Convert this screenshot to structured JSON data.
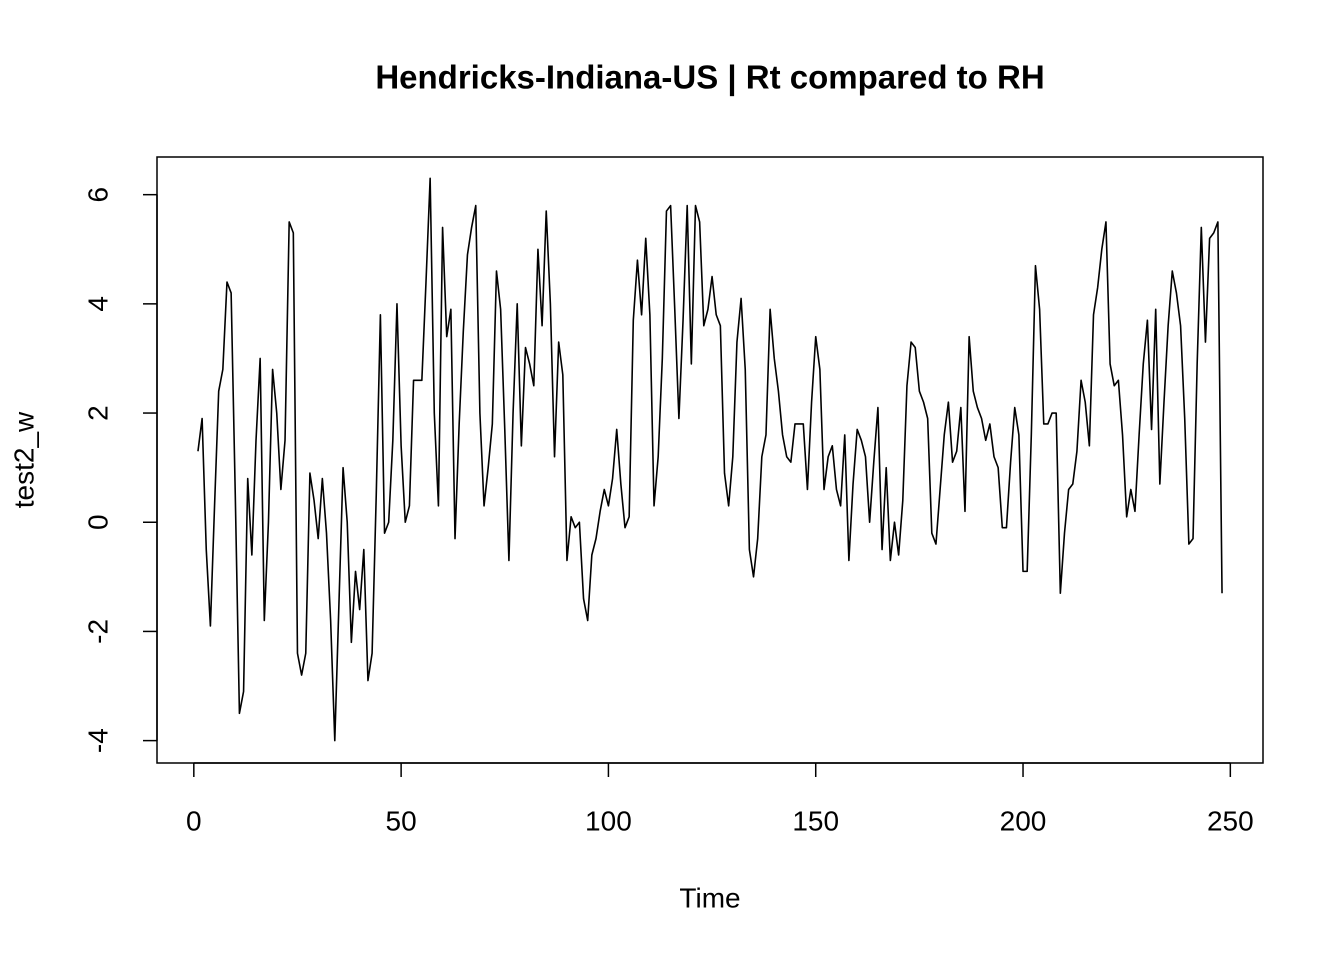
{
  "chart_data": {
    "type": "line",
    "title": "Hendricks-Indiana-US | Rt compared to RH",
    "x_label": "Time",
    "y_label": "test2_w",
    "x": [
      1,
      2,
      3,
      4,
      5,
      6,
      7,
      8,
      9,
      10,
      11,
      12,
      13,
      14,
      15,
      16,
      17,
      18,
      19,
      20,
      21,
      22,
      23,
      24,
      25,
      26,
      27,
      28,
      29,
      30,
      31,
      32,
      33,
      34,
      35,
      36,
      37,
      38,
      39,
      40,
      41,
      42,
      43,
      44,
      45,
      46,
      47,
      48,
      49,
      50,
      51,
      52,
      53,
      54,
      55,
      56,
      57,
      58,
      59,
      60,
      61,
      62,
      63,
      64,
      65,
      66,
      67,
      68,
      69,
      70,
      71,
      72,
      73,
      74,
      75,
      76,
      77,
      78,
      79,
      80,
      81,
      82,
      83,
      84,
      85,
      86,
      87,
      88,
      89,
      90,
      91,
      92,
      93,
      94,
      95,
      96,
      97,
      98,
      99,
      100,
      101,
      102,
      103,
      104,
      105,
      106,
      107,
      108,
      109,
      110,
      111,
      112,
      113,
      114,
      115,
      116,
      117,
      118,
      119,
      120,
      121,
      122,
      123,
      124,
      125,
      126,
      127,
      128,
      129,
      130,
      131,
      132,
      133,
      134,
      135,
      136,
      137,
      138,
      139,
      140,
      141,
      142,
      143,
      144,
      145,
      146,
      147,
      148,
      149,
      150,
      151,
      152,
      153,
      154,
      155,
      156,
      157,
      158,
      159,
      160,
      161,
      162,
      163,
      164,
      165,
      166,
      167,
      168,
      169,
      170,
      171,
      172,
      173,
      174,
      175,
      176,
      177,
      178,
      179,
      180,
      181,
      182,
      183,
      184,
      185,
      186,
      187,
      188,
      189,
      190,
      191,
      192,
      193,
      194,
      195,
      196,
      197,
      198,
      199,
      200,
      201,
      202,
      203,
      204,
      205,
      206,
      207,
      208,
      209,
      210,
      211,
      212,
      213,
      214,
      215,
      216,
      217,
      218,
      219,
      220,
      221,
      222,
      223,
      224,
      225,
      226,
      227,
      228,
      229,
      230,
      231,
      232,
      233,
      234,
      235,
      236,
      237,
      238,
      239,
      240,
      241,
      242,
      243,
      244,
      245,
      246,
      247,
      248
    ],
    "series": [
      {
        "name": "test2_w",
        "color": "#000000",
        "values": [
          1.3,
          1.9,
          -0.5,
          -1.9,
          0.3,
          2.4,
          2.8,
          4.4,
          4.2,
          0.5,
          -3.5,
          -3.1,
          0.8,
          -0.6,
          1.5,
          3.0,
          -1.8,
          0.0,
          2.8,
          2.0,
          0.6,
          1.5,
          5.5,
          5.3,
          -2.4,
          -2.8,
          -2.4,
          0.9,
          0.4,
          -0.3,
          0.8,
          -0.2,
          -1.8,
          -4.0,
          -1.5,
          1.0,
          0.0,
          -2.2,
          -0.9,
          -1.6,
          -0.5,
          -2.9,
          -2.4,
          0.5,
          3.8,
          -0.2,
          0.0,
          1.5,
          4.0,
          1.4,
          0.0,
          0.3,
          2.6,
          2.6,
          2.6,
          4.4,
          6.3,
          2.0,
          0.3,
          5.4,
          3.4,
          3.9,
          -0.3,
          1.8,
          3.5,
          4.9,
          5.4,
          5.8,
          2.0,
          0.3,
          1.0,
          1.8,
          4.6,
          3.9,
          1.7,
          -0.7,
          2.0,
          4.0,
          1.4,
          3.2,
          2.9,
          2.5,
          5.0,
          3.6,
          5.7,
          4.0,
          1.2,
          3.3,
          2.7,
          -0.7,
          0.1,
          -0.1,
          0.0,
          -1.4,
          -1.8,
          -0.6,
          -0.3,
          0.2,
          0.6,
          0.3,
          0.8,
          1.7,
          0.7,
          -0.1,
          0.1,
          3.7,
          4.8,
          3.8,
          5.2,
          3.8,
          0.3,
          1.2,
          3.0,
          5.7,
          5.8,
          3.9,
          1.9,
          3.7,
          5.8,
          2.9,
          5.8,
          5.5,
          3.6,
          3.9,
          4.5,
          3.8,
          3.6,
          0.9,
          0.3,
          1.2,
          3.3,
          4.1,
          2.8,
          -0.5,
          -1.0,
          -0.3,
          1.2,
          1.6,
          3.9,
          3.0,
          2.4,
          1.6,
          1.2,
          1.1,
          1.8,
          1.8,
          1.8,
          0.6,
          2.2,
          3.4,
          2.8,
          0.6,
          1.2,
          1.4,
          0.6,
          0.3,
          1.6,
          -0.7,
          0.7,
          1.7,
          1.5,
          1.2,
          0.0,
          1.1,
          2.1,
          -0.5,
          1.0,
          -0.7,
          0.0,
          -0.6,
          0.4,
          2.5,
          3.3,
          3.2,
          2.4,
          2.2,
          1.9,
          -0.2,
          -0.4,
          0.6,
          1.6,
          2.2,
          1.1,
          1.3,
          2.1,
          0.2,
          3.4,
          2.4,
          2.1,
          1.9,
          1.5,
          1.8,
          1.2,
          1.0,
          -0.1,
          -0.1,
          1.1,
          2.1,
          1.6,
          -0.9,
          -0.9,
          1.6,
          4.7,
          3.9,
          1.8,
          1.8,
          2.0,
          2.0,
          -1.3,
          -0.2,
          0.6,
          0.7,
          1.3,
          2.6,
          2.2,
          1.4,
          3.8,
          4.3,
          5.0,
          5.5,
          2.9,
          2.5,
          2.6,
          1.6,
          0.1,
          0.6,
          0.2,
          1.6,
          2.9,
          3.7,
          1.7,
          3.9,
          0.7,
          2.2,
          3.6,
          4.6,
          4.2,
          3.6,
          1.9,
          -0.4,
          -0.3,
          2.9,
          5.4,
          3.3,
          5.2,
          5.3,
          5.5,
          -1.3
        ]
      }
    ],
    "xlim": [
      -8.88,
      257.88
    ],
    "ylim": [
      -4.41,
      6.69
    ],
    "xticks": [
      0,
      50,
      100,
      150,
      200,
      250
    ],
    "yticks": [
      -4,
      -2,
      0,
      2,
      4,
      6
    ],
    "grid": false
  }
}
